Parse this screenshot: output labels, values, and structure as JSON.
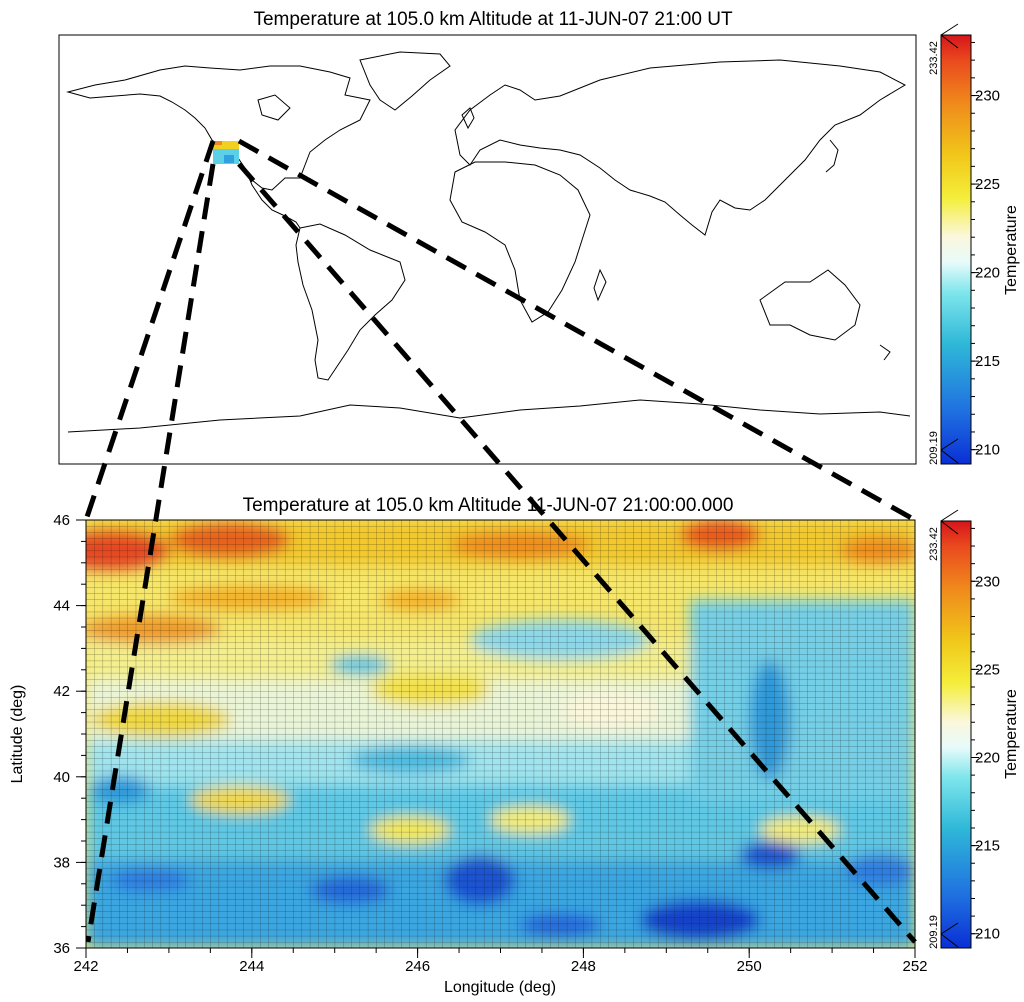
{
  "chart_data": [
    {
      "type": "heatmap",
      "title": "Temperature at 105.0 km Altitude at 11-JUN-07 21:00 UT",
      "description_region": "world map with small data patch over western North America",
      "patch_extent": {
        "lon_range": [
          242,
          252
        ],
        "lat_range": [
          36,
          46
        ]
      },
      "colorbar": {
        "label": "Temperature",
        "min": 209.19,
        "max": 233.42,
        "min_label": "209.19",
        "max_label": "233.42",
        "ticks": [
          210,
          215,
          220,
          225,
          230
        ],
        "tick_labels": [
          "210",
          "215",
          "220",
          "225",
          "230"
        ]
      }
    },
    {
      "type": "heatmap",
      "title": "Temperature at 105.0 km Altitude 11-JUN-07 21:00:00.000",
      "xlabel": "Longitude (deg)",
      "ylabel": "Latitude (deg)",
      "xlim": [
        242,
        252
      ],
      "ylim": [
        36,
        46
      ],
      "xticks": [
        242,
        244,
        246,
        248,
        250,
        252
      ],
      "xtick_labels": [
        "242",
        "244",
        "246",
        "248",
        "250",
        "252"
      ],
      "yticks": [
        36,
        38,
        40,
        42,
        44,
        46
      ],
      "ytick_labels": [
        "36",
        "38",
        "40",
        "42",
        "44",
        "46"
      ],
      "grid": true,
      "field_by_latitude": [
        {
          "lat": 46,
          "temperature": 229
        },
        {
          "lat": 45,
          "temperature": 227
        },
        {
          "lat": 44,
          "temperature": 225
        },
        {
          "lat": 43,
          "temperature": 223
        },
        {
          "lat": 42,
          "temperature": 221
        },
        {
          "lat": 41,
          "temperature": 219
        },
        {
          "lat": 40,
          "temperature": 217
        },
        {
          "lat": 39,
          "temperature": 216
        },
        {
          "lat": 38,
          "temperature": 214
        },
        {
          "lat": 37,
          "temperature": 213
        },
        {
          "lat": 36,
          "temperature": 212
        }
      ],
      "colorbar": {
        "label": "Temperature",
        "min": 209.19,
        "max": 233.42,
        "min_label": "209.19",
        "max_label": "233.42",
        "ticks": [
          210,
          215,
          220,
          225,
          230
        ],
        "tick_labels": [
          "210",
          "215",
          "220",
          "225",
          "230"
        ]
      }
    }
  ]
}
